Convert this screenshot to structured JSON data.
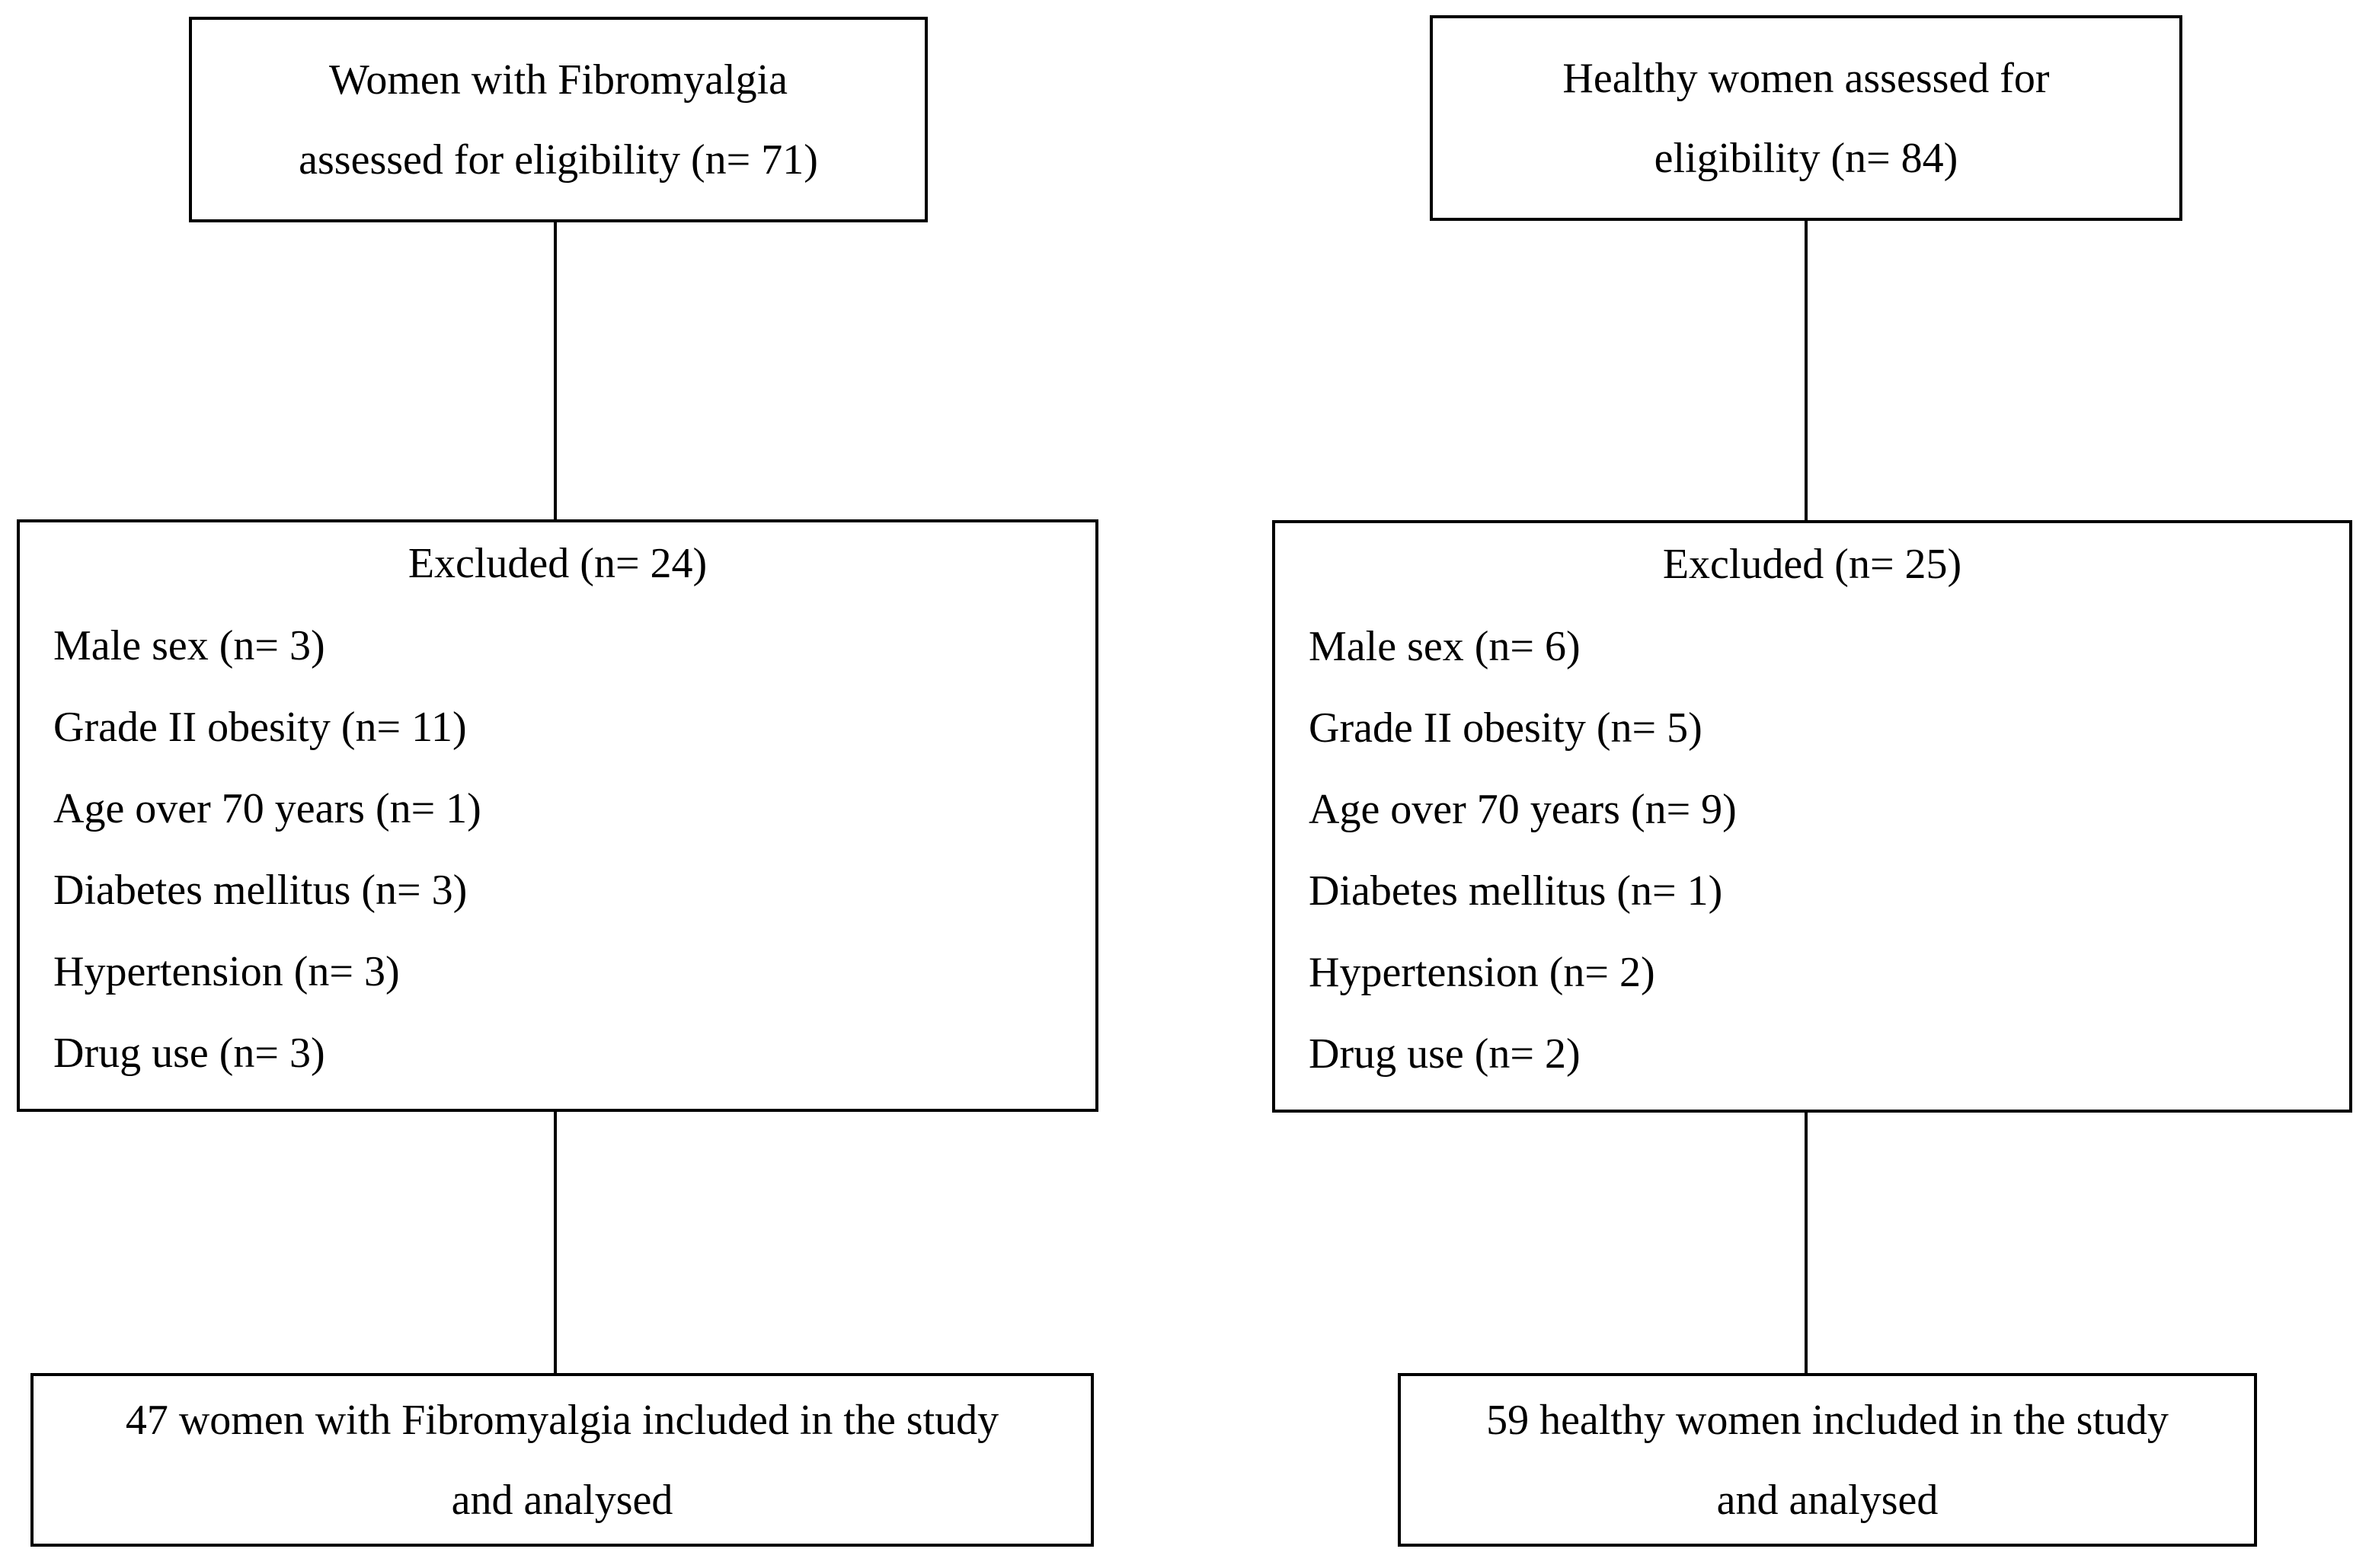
{
  "diagram": {
    "type": "participant-flow-diagram",
    "colors": {
      "background": "#ffffff",
      "line": "#000000",
      "text": "#000000"
    },
    "left_arm": {
      "eligibility_box": {
        "line1": "Women with Fibromyalgia",
        "line2": "assessed for eligibility (n= 71)"
      },
      "excluded_box": {
        "title": "Excluded (n= 24)",
        "items": [
          "Male sex (n= 3)",
          "Grade II obesity (n= 11)",
          "Age over 70 years (n= 1)",
          "Diabetes mellitus (n= 3)",
          "Hypertension (n= 3)",
          "Drug use (n= 3)"
        ]
      },
      "included_box": {
        "line1": "47 women with Fibromyalgia included in the study",
        "line2": "and analysed"
      }
    },
    "right_arm": {
      "eligibility_box": {
        "line1": "Healthy women assessed for",
        "line2": "eligibility (n= 84)"
      },
      "excluded_box": {
        "title": "Excluded (n= 25)",
        "items": [
          "Male sex (n= 6)",
          "Grade II obesity (n= 5)",
          "Age over 70 years (n= 9)",
          "Diabetes mellitus (n= 1)",
          "Hypertension (n= 2)",
          "Drug use (n= 2)"
        ]
      },
      "included_box": {
        "line1": "59 healthy women included in the study",
        "line2": "and analysed"
      }
    }
  }
}
